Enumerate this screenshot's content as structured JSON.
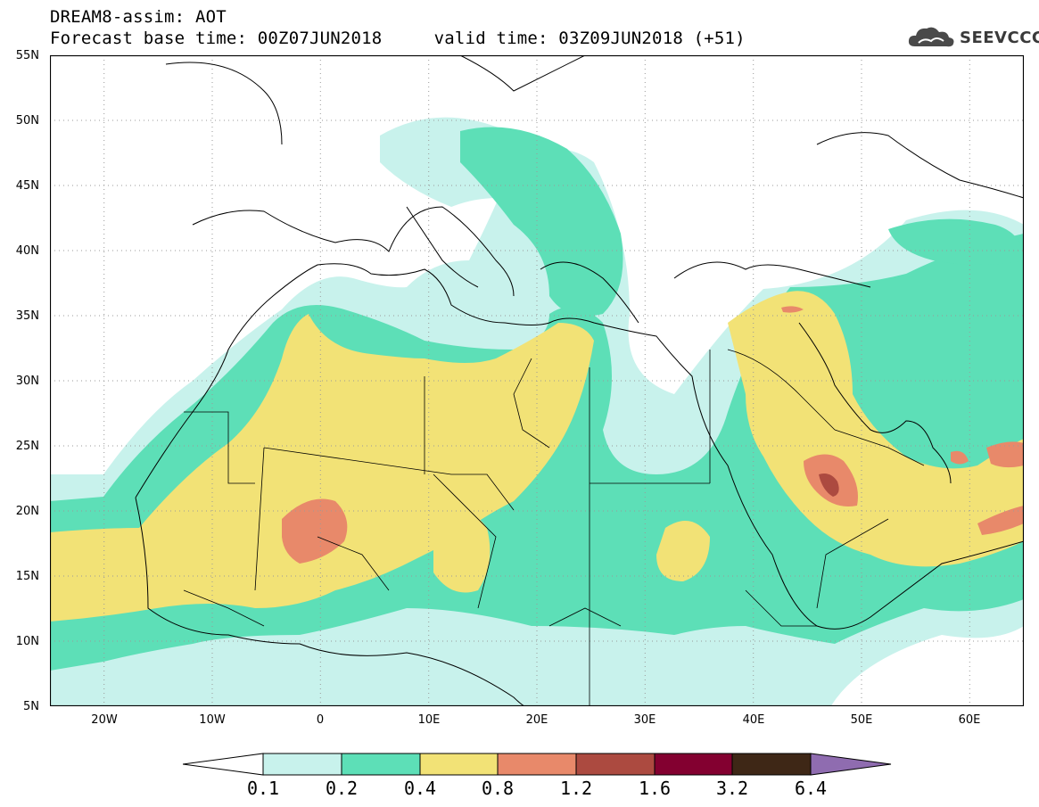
{
  "header": {
    "title_line1": "DREAM8-assim: AOT",
    "title_line2": "Forecast base time: 00Z07JUN2018     valid time: 03Z09JUN2018 (+51)"
  },
  "logo": {
    "text": "SEEVCCC",
    "icon": "cloud-icon"
  },
  "map": {
    "projection": "lat-lon",
    "lat_range": [
      5,
      55
    ],
    "lon_range": [
      -25,
      65
    ],
    "y_axis": {
      "ticks": [
        55,
        50,
        45,
        40,
        35,
        30,
        25,
        20,
        15,
        10,
        5
      ],
      "labels": [
        "55N",
        "50N",
        "45N",
        "40N",
        "35N",
        "30N",
        "25N",
        "20N",
        "15N",
        "10N",
        "5N"
      ]
    },
    "x_axis": {
      "ticks": [
        -20,
        -10,
        0,
        10,
        20,
        30,
        40,
        50,
        60
      ],
      "labels": [
        "20W",
        "10W",
        "0",
        "10E",
        "20E",
        "30E",
        "40E",
        "50E",
        "60E"
      ]
    },
    "grid": "dotted",
    "field": "dust aerosol optical thickness"
  },
  "colorbar": {
    "levels": [
      "0.1",
      "0.2",
      "0.4",
      "0.8",
      "1.2",
      "1.6",
      "3.2",
      "6.4"
    ],
    "colors": [
      "#c8f2ec",
      "#5ddfb7",
      "#f2e276",
      "#e8896a",
      "#ac4a40",
      "#830030",
      "#3e2716",
      "#8f6cb0"
    ]
  }
}
